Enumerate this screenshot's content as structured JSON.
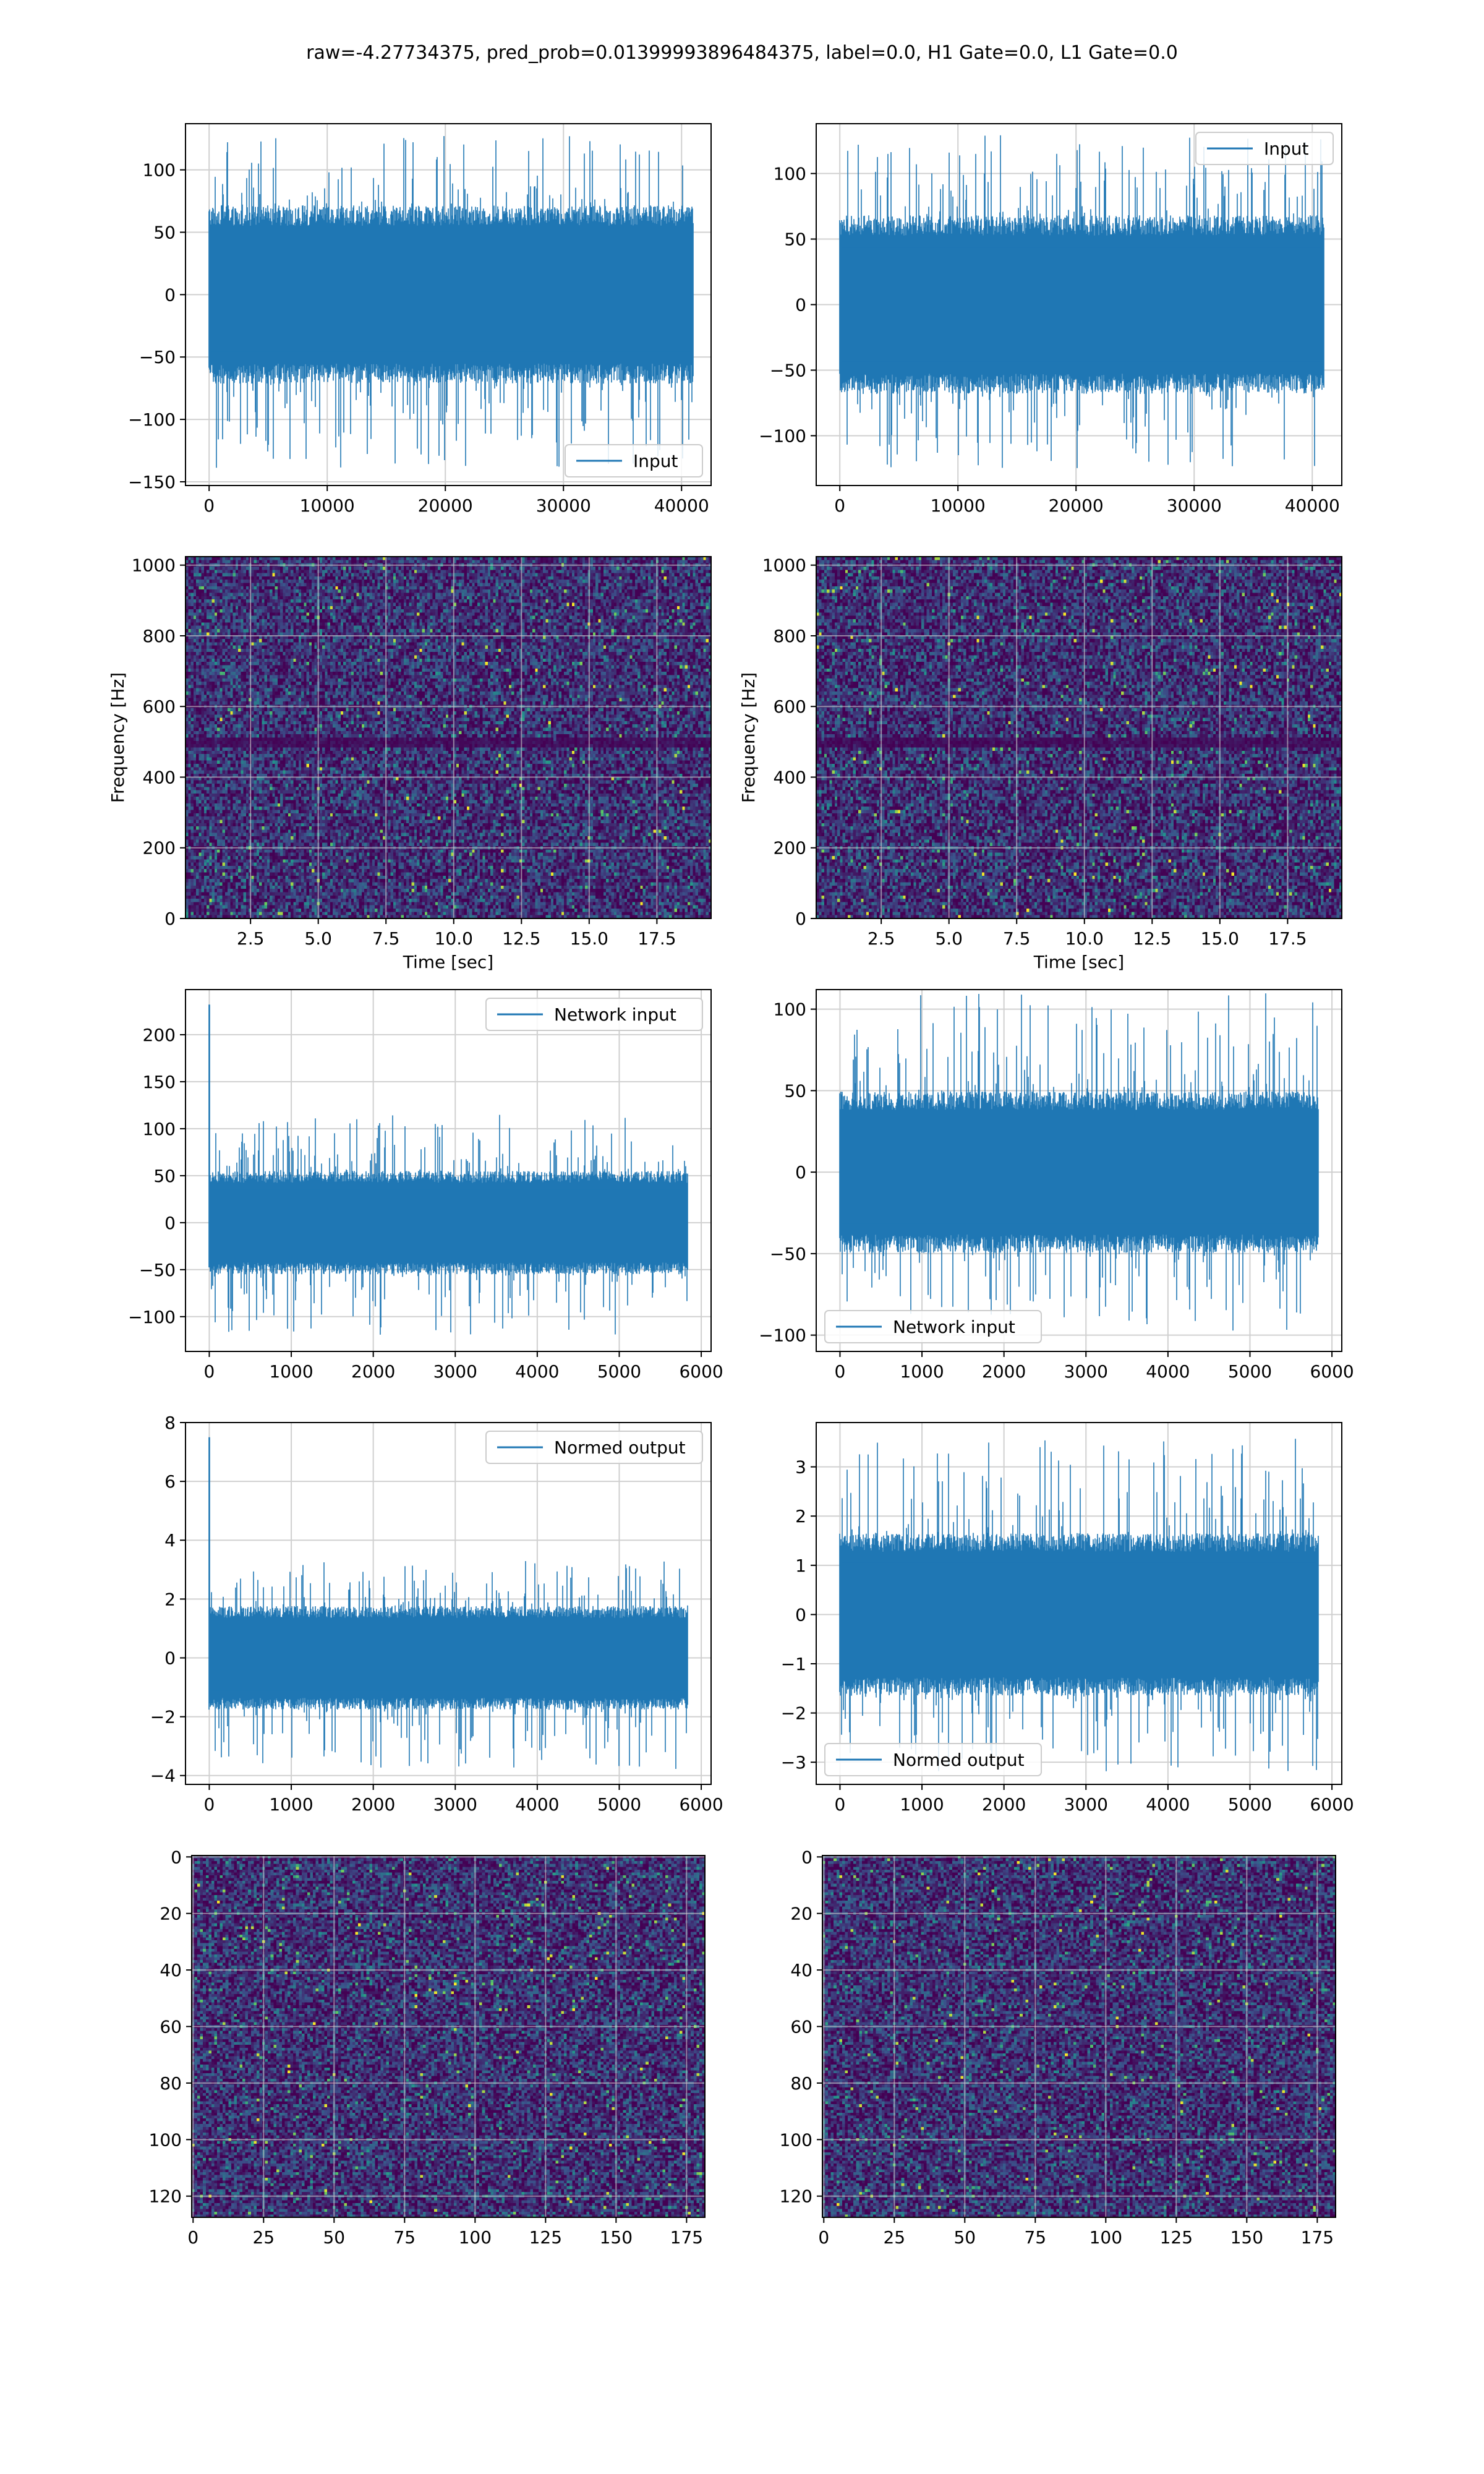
{
  "figure_title": "raw=-4.27734375, pred_prob=0.01399993896484375, label=0.0, H1 Gate=0.0, L1 Gate=0.0",
  "colors": {
    "line": "#1f77b4",
    "grid": "#d0d0d0",
    "viridis": [
      "#440154",
      "#3b528b",
      "#21918c",
      "#5ec962",
      "#fde725"
    ]
  },
  "chart_data": [
    {
      "type": "line",
      "panel": "row1-left",
      "title": "",
      "xlabel": "",
      "ylabel": "",
      "legend": {
        "label": "Input",
        "loc": "lower-right"
      },
      "xlim": [
        -2000,
        42500
      ],
      "ylim": [
        -153,
        137
      ],
      "xticks": [
        0,
        10000,
        20000,
        30000,
        40000
      ],
      "yticks": [
        -150,
        -100,
        -50,
        0,
        50,
        100
      ],
      "n_points": 40960,
      "signal": {
        "band": 65,
        "spike_max": 128,
        "spike_min": -140,
        "start_spike": null
      }
    },
    {
      "type": "line",
      "panel": "row1-right",
      "title": "",
      "xlabel": "",
      "ylabel": "",
      "legend": {
        "label": "Input",
        "loc": "upper-right"
      },
      "xlim": [
        -2000,
        42500
      ],
      "ylim": [
        -138,
        138
      ],
      "xticks": [
        0,
        10000,
        20000,
        30000,
        40000
      ],
      "yticks": [
        -100,
        -50,
        0,
        50,
        100
      ],
      "n_points": 40960,
      "signal": {
        "band": 62,
        "spike_max": 130,
        "spike_min": -125,
        "start_spike": null
      }
    },
    {
      "type": "heatmap",
      "panel": "row2-left",
      "xlabel": "Time [sec]",
      "ylabel": "Frequency [Hz]",
      "xlim": [
        0.1,
        19.5
      ],
      "ylim": [
        0,
        1024
      ],
      "xticks": [
        2.5,
        5.0,
        7.5,
        10.0,
        12.5,
        15.0,
        17.5
      ],
      "xticklabels": [
        "2.5",
        "5.0",
        "7.5",
        "10.0",
        "12.5",
        "15.0",
        "17.5"
      ],
      "yticks": [
        0,
        200,
        400,
        600,
        800,
        1000
      ],
      "dark_band_hz": 500
    },
    {
      "type": "heatmap",
      "panel": "row2-right",
      "xlabel": "Time [sec]",
      "ylabel": "Frequency [Hz]",
      "xlim": [
        0.1,
        19.5
      ],
      "ylim": [
        0,
        1024
      ],
      "xticks": [
        2.5,
        5.0,
        7.5,
        10.0,
        12.5,
        15.0,
        17.5
      ],
      "xticklabels": [
        "2.5",
        "5.0",
        "7.5",
        "10.0",
        "12.5",
        "15.0",
        "17.5"
      ],
      "yticks": [
        0,
        200,
        400,
        600,
        800,
        1000
      ],
      "dark_band_hz": 500
    },
    {
      "type": "line",
      "panel": "row3-left",
      "legend": {
        "label": "Network input",
        "loc": "upper-right"
      },
      "xlim": [
        -290,
        6120
      ],
      "ylim": [
        -137,
        248
      ],
      "xticks": [
        0,
        1000,
        2000,
        3000,
        4000,
        5000,
        6000
      ],
      "yticks": [
        -100,
        -50,
        0,
        50,
        100,
        150,
        200
      ],
      "n_points": 5830,
      "signal": {
        "band": 50,
        "spike_max": 115,
        "spike_min": -120,
        "start_spike": 232
      }
    },
    {
      "type": "line",
      "panel": "row3-right",
      "legend": {
        "label": "Network input",
        "loc": "lower-left"
      },
      "xlim": [
        -290,
        6120
      ],
      "ylim": [
        -110,
        112
      ],
      "xticks": [
        0,
        1000,
        2000,
        3000,
        4000,
        5000,
        6000
      ],
      "yticks": [
        -100,
        -50,
        0,
        50,
        100
      ],
      "n_points": 5830,
      "signal": {
        "band": 45,
        "spike_max": 110,
        "spike_min": -98,
        "start_spike": null
      }
    },
    {
      "type": "line",
      "panel": "row4-left",
      "legend": {
        "label": "Normed output",
        "loc": "upper-right"
      },
      "xlim": [
        -290,
        6120
      ],
      "ylim": [
        -4.3,
        8.0
      ],
      "xticks": [
        0,
        1000,
        2000,
        3000,
        4000,
        5000,
        6000
      ],
      "yticks": [
        -4,
        -2,
        0,
        2,
        4,
        6,
        8
      ],
      "n_points": 5830,
      "signal": {
        "band": 1.6,
        "spike_max": 3.3,
        "spike_min": -3.8,
        "start_spike": 7.5
      }
    },
    {
      "type": "line",
      "panel": "row4-right",
      "legend": {
        "label": "Normed output",
        "loc": "lower-left"
      },
      "xlim": [
        -290,
        6120
      ],
      "ylim": [
        -3.45,
        3.9
      ],
      "xticks": [
        0,
        1000,
        2000,
        3000,
        4000,
        5000,
        6000
      ],
      "yticks": [
        -3,
        -2,
        -1,
        0,
        1,
        2,
        3
      ],
      "n_points": 5830,
      "signal": {
        "band": 1.5,
        "spike_max": 3.6,
        "spike_min": -3.2,
        "start_spike": null
      }
    },
    {
      "type": "heatmap",
      "panel": "row5-left",
      "xlabel": "",
      "ylabel": "",
      "xlim": [
        -0.5,
        181.5
      ],
      "ylim": [
        127.5,
        -0.5
      ],
      "xticks": [
        0,
        25,
        50,
        75,
        100,
        125,
        150,
        175
      ],
      "yticks": [
        0,
        20,
        40,
        60,
        80,
        100,
        120
      ],
      "cells": [
        182,
        128
      ]
    },
    {
      "type": "heatmap",
      "panel": "row5-right",
      "xlabel": "",
      "ylabel": "",
      "xlim": [
        -0.5,
        181.5
      ],
      "ylim": [
        127.5,
        -0.5
      ],
      "xticks": [
        0,
        25,
        50,
        75,
        100,
        125,
        150,
        175
      ],
      "yticks": [
        0,
        20,
        40,
        60,
        80,
        100,
        120
      ],
      "cells": [
        182,
        128
      ]
    }
  ]
}
